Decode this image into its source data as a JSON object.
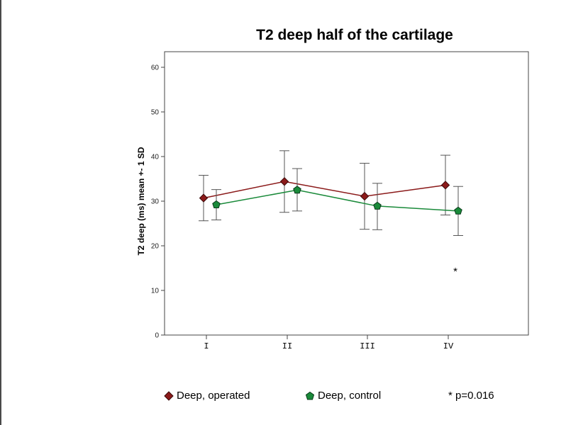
{
  "chart_data": {
    "type": "line",
    "title": "T2 deep half of the cartilage",
    "xlabel": "",
    "ylabel": "T2 deep (ms) mean +- 1 SD",
    "categories": [
      "I",
      "II",
      "III",
      "IV"
    ],
    "ylim": [
      0,
      63
    ],
    "yticks": [
      0,
      10,
      20,
      30,
      40,
      50,
      60
    ],
    "grid": false,
    "series": [
      {
        "name": "Deep, operated",
        "color": "#8b1a1a",
        "marker": "diamond",
        "values": [
          30.7,
          34.4,
          31.1,
          33.6
        ],
        "upper": [
          35.8,
          41.3,
          38.5,
          40.3
        ],
        "lower": [
          25.6,
          27.5,
          23.7,
          26.9
        ]
      },
      {
        "name": "Deep, control",
        "color": "#1a8a3a",
        "marker": "pentagon",
        "values": [
          29.2,
          32.5,
          28.9,
          27.8
        ],
        "upper": [
          32.6,
          37.3,
          34.0,
          33.3
        ],
        "lower": [
          25.8,
          27.8,
          23.6,
          22.3
        ]
      }
    ],
    "annotations": [
      {
        "text": "*",
        "category": "IV",
        "y": 14
      }
    ]
  },
  "legend": {
    "items": [
      "Deep, operated",
      "Deep, control"
    ],
    "note": "* p=0.016"
  }
}
